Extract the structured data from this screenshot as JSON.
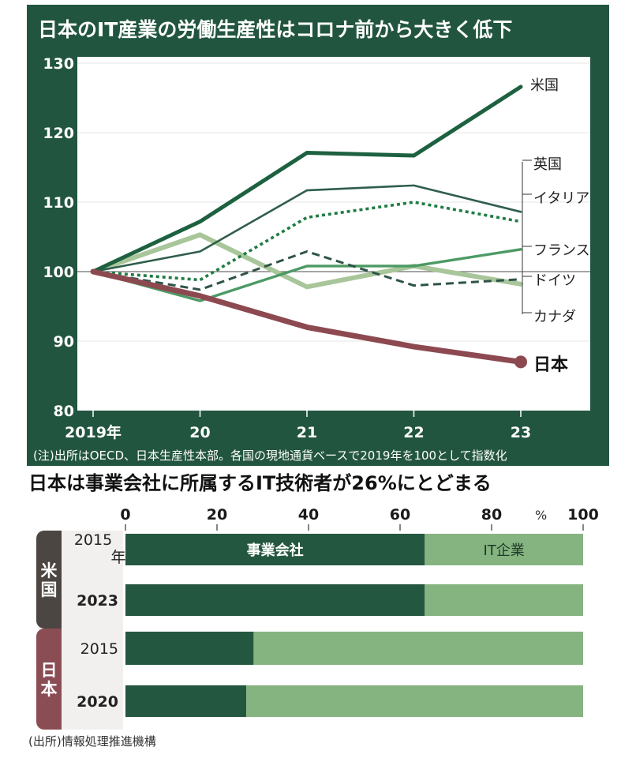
{
  "colors": {
    "panel": "#22553f",
    "us_line": "#1d6140",
    "uk_line": "#2f5e4b",
    "it_line": "#1f7c43",
    "fr_line": "#4c9a64",
    "de_line": "#2e5448",
    "ca_line": "#a8c69a",
    "jp_line": "#8c4a50",
    "bar_dark": "#24573f",
    "bar_light": "#86b481",
    "us_badge": "#4c4642",
    "jp_badge": "#8b4d54"
  },
  "chart_data": [
    {
      "type": "line",
      "title": "日本のIT産業の労働生産性はコロナ前から大きく低下",
      "x": [
        "2019年",
        "20",
        "21",
        "22",
        "23"
      ],
      "yticks": [
        80,
        90,
        100,
        110,
        120,
        130
      ],
      "ylim": [
        80,
        130
      ],
      "series": [
        {
          "name": "米国",
          "values": [
            100,
            107.2,
            117.1,
            116.7,
            126.6
          ]
        },
        {
          "name": "英国",
          "values": [
            100,
            102.9,
            111.7,
            112.4,
            108.6
          ]
        },
        {
          "name": "イタリア",
          "values": [
            100,
            98.8,
            107.8,
            110.0,
            107.2
          ]
        },
        {
          "name": "フランス",
          "values": [
            100,
            95.8,
            100.8,
            100.8,
            103.2
          ]
        },
        {
          "name": "ドイツ",
          "values": [
            100,
            97.4,
            102.9,
            98.0,
            98.9
          ]
        },
        {
          "name": "カナダ",
          "values": [
            100,
            105.3,
            97.8,
            100.8,
            98.2
          ]
        },
        {
          "name": "日本",
          "values": [
            100,
            96.5,
            92.0,
            89.2,
            87.0
          ]
        }
      ],
      "note": "(注)出所はOECD、日本生産性本部。各国の現地通貨ベースで2019年を100として指数化"
    },
    {
      "type": "bar",
      "stacked": true,
      "orientation": "horizontal",
      "title": "日本は事業会社に所属するIT技術者が26%にとどまる",
      "xticks": [
        0,
        20,
        40,
        60,
        80,
        100
      ],
      "unit": "%",
      "xlim": [
        0,
        100
      ],
      "segments": [
        "事業会社",
        "IT企業"
      ],
      "groups": [
        {
          "name": "米国",
          "rows": [
            {
              "label": "2015年",
              "values": [
                65.4,
                34.6
              ]
            },
            {
              "label": "2023",
              "values": [
                65.4,
                34.6
              ]
            }
          ]
        },
        {
          "name": "日本",
          "rows": [
            {
              "label": "2015",
              "values": [
                28.0,
                72.0
              ]
            },
            {
              "label": "2020",
              "values": [
                26.4,
                73.6
              ]
            }
          ]
        }
      ],
      "source": "(出所)情報処理推進機構"
    }
  ]
}
